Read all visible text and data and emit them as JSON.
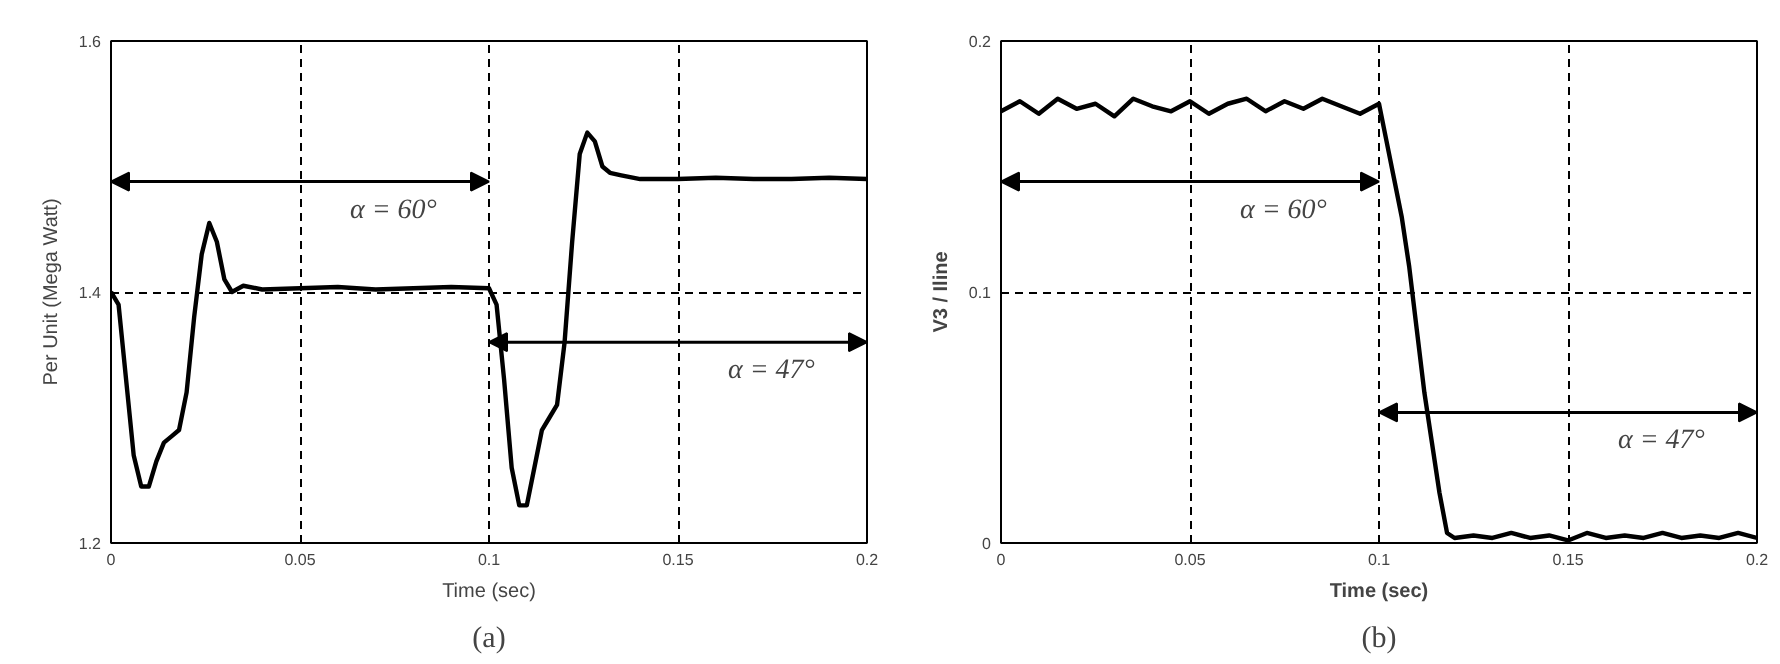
{
  "chart_data": [
    {
      "type": "line",
      "xlabel": "Time (sec)",
      "ylabel": "Per Unit (Mega Watt)",
      "xlim": [
        0,
        0.2
      ],
      "ylim": [
        1.2,
        1.6
      ],
      "xticks": [
        0,
        0.05,
        0.1,
        0.15,
        0.2
      ],
      "yticks": [
        1.2,
        1.4,
        1.6
      ],
      "grid": true,
      "line_style": "solid",
      "series": [
        {
          "color": "#000000",
          "x": [
            0,
            0.002,
            0.004,
            0.006,
            0.008,
            0.01,
            0.012,
            0.014,
            0.016,
            0.018,
            0.02,
            0.022,
            0.024,
            0.026,
            0.028,
            0.03,
            0.032,
            0.035,
            0.04,
            0.05,
            0.06,
            0.07,
            0.08,
            0.09,
            0.1,
            0.102,
            0.104,
            0.106,
            0.108,
            0.11,
            0.112,
            0.114,
            0.116,
            0.118,
            0.12,
            0.122,
            0.124,
            0.126,
            0.128,
            0.13,
            0.132,
            0.135,
            0.14,
            0.15,
            0.16,
            0.17,
            0.18,
            0.19,
            0.2
          ],
          "values": [
            1.4,
            1.39,
            1.33,
            1.27,
            1.245,
            1.245,
            1.265,
            1.28,
            1.285,
            1.29,
            1.32,
            1.38,
            1.43,
            1.455,
            1.44,
            1.41,
            1.4,
            1.405,
            1.402,
            1.403,
            1.404,
            1.402,
            1.403,
            1.404,
            1.403,
            1.39,
            1.33,
            1.26,
            1.23,
            1.23,
            1.26,
            1.29,
            1.3,
            1.31,
            1.36,
            1.44,
            1.51,
            1.527,
            1.52,
            1.5,
            1.495,
            1.493,
            1.49,
            1.49,
            1.491,
            1.49,
            1.49,
            1.491,
            1.49
          ]
        }
      ],
      "annotations": [
        "α = 60°",
        "α = 47°",
        "(a)"
      ]
    },
    {
      "type": "line",
      "xlabel": "Time (sec)",
      "ylabel": "V3 / Iline",
      "xlim": [
        0,
        0.2
      ],
      "ylim": [
        0,
        0.2
      ],
      "xticks": [
        0,
        0.05,
        0.1,
        0.15,
        0.2
      ],
      "yticks": [
        0,
        0.1,
        0.2
      ],
      "grid": true,
      "line_style": "solid",
      "series": [
        {
          "color": "#000000",
          "x": [
            0,
            0.005,
            0.01,
            0.015,
            0.02,
            0.025,
            0.03,
            0.035,
            0.04,
            0.045,
            0.05,
            0.055,
            0.06,
            0.065,
            0.07,
            0.075,
            0.08,
            0.085,
            0.09,
            0.095,
            0.1,
            0.102,
            0.104,
            0.106,
            0.108,
            0.11,
            0.112,
            0.114,
            0.116,
            0.118,
            0.12,
            0.125,
            0.13,
            0.135,
            0.14,
            0.145,
            0.15,
            0.155,
            0.16,
            0.165,
            0.17,
            0.175,
            0.18,
            0.185,
            0.19,
            0.195,
            0.2
          ],
          "values": [
            0.172,
            0.176,
            0.171,
            0.177,
            0.173,
            0.175,
            0.17,
            0.177,
            0.174,
            0.172,
            0.176,
            0.171,
            0.175,
            0.177,
            0.172,
            0.176,
            0.173,
            0.177,
            0.174,
            0.171,
            0.175,
            0.16,
            0.145,
            0.13,
            0.11,
            0.085,
            0.06,
            0.04,
            0.02,
            0.004,
            0.002,
            0.003,
            0.002,
            0.004,
            0.002,
            0.003,
            0.001,
            0.004,
            0.002,
            0.003,
            0.002,
            0.004,
            0.002,
            0.003,
            0.002,
            0.004,
            0.002
          ]
        }
      ],
      "annotations": [
        "α = 60°",
        "α = 47°",
        "(b)"
      ]
    }
  ]
}
